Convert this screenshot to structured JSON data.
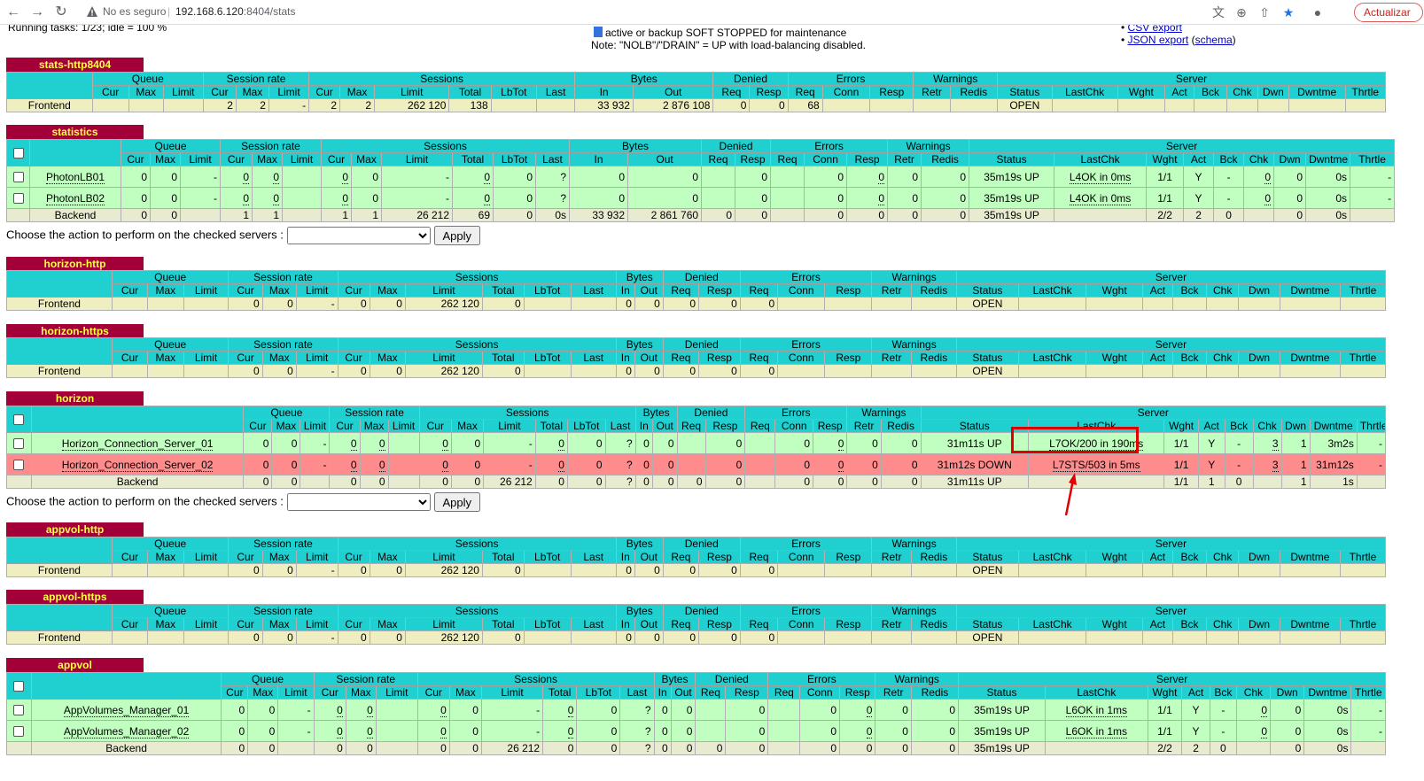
{
  "browser": {
    "insecure_label": "No es seguro",
    "url_host": "192.168.6.120",
    "url_rest": ":8404/stats",
    "update_button": "Actualizar"
  },
  "page": {
    "running_tasks": "Running tasks: 1/23; idle = 100 %",
    "legend_text": "active or backup SOFT STOPPED for maintenance",
    "note": "Note: \"NOLB\"/\"DRAIN\" = UP with load-balancing disabled.",
    "csv_export": "CSV export",
    "json_export": "JSON export",
    "schema": "schema",
    "action_label": "Choose the action to perform on the checked servers :",
    "apply": "Apply"
  },
  "headers": {
    "groups": [
      "Queue",
      "Session rate",
      "Sessions",
      "Bytes",
      "Denied",
      "Errors",
      "Warnings",
      "Server"
    ],
    "sub": [
      "Cur",
      "Max",
      "Limit",
      "Cur",
      "Max",
      "Limit",
      "Cur",
      "Max",
      "Limit",
      "Total",
      "LbTot",
      "Last",
      "In",
      "Out",
      "Req",
      "Resp",
      "Req",
      "Conn",
      "Resp",
      "Retr",
      "Redis",
      "Status",
      "LastChk",
      "Wght",
      "Act",
      "Bck",
      "Chk",
      "Dwn",
      "Dwntme",
      "Thrtle"
    ]
  },
  "proxies": {
    "stats": {
      "name": "stats-http8404",
      "frontend": {
        "name": "Frontend",
        "qcur": "",
        "qmax": "",
        "qlim": "",
        "rcur": "2",
        "rmax": "2",
        "rlim": "-",
        "scur": "2",
        "smax": "2",
        "slim": "262 120",
        "stot": "138",
        "lbtot": "",
        "last": "",
        "bin": "33 932",
        "bout": "2 876 108",
        "dreq": "0",
        "dresp": "0",
        "ereq": "68",
        "econ": "",
        "eresp": "",
        "wretr": "",
        "wredis": "",
        "status": "OPEN",
        "lastchk": "",
        "wght": "",
        "act": "",
        "bck": "",
        "chk": "",
        "dwn": "",
        "dwntme": "",
        "thr": ""
      }
    },
    "statistics": {
      "name": "statistics",
      "servers": [
        {
          "name": "PhotonLB01",
          "qcur": "0",
          "qmax": "0",
          "qlim": "-",
          "rcur": "0",
          "rmax": "0",
          "rlim": "",
          "scur": "0",
          "smax": "0",
          "slim": "-",
          "stot": "0",
          "lbtot": "0",
          "last": "?",
          "bin": "0",
          "bout": "0",
          "dreq": "",
          "dresp": "0",
          "ereq": "",
          "econ": "0",
          "eresp": "0",
          "wretr": "0",
          "wredis": "0",
          "status": "35m19s UP",
          "lastchk": "L4OK in 0ms",
          "wght": "1/1",
          "act": "Y",
          "bck": "-",
          "chk": "0",
          "dwn": "0",
          "dwntme": "0s",
          "thr": "-"
        },
        {
          "name": "PhotonLB02",
          "qcur": "0",
          "qmax": "0",
          "qlim": "-",
          "rcur": "0",
          "rmax": "0",
          "rlim": "",
          "scur": "0",
          "smax": "0",
          "slim": "-",
          "stot": "0",
          "lbtot": "0",
          "last": "?",
          "bin": "0",
          "bout": "0",
          "dreq": "",
          "dresp": "0",
          "ereq": "",
          "econ": "0",
          "eresp": "0",
          "wretr": "0",
          "wredis": "0",
          "status": "35m19s UP",
          "lastchk": "L4OK in 0ms",
          "wght": "1/1",
          "act": "Y",
          "bck": "-",
          "chk": "0",
          "dwn": "0",
          "dwntme": "0s",
          "thr": "-"
        }
      ],
      "backend": {
        "name": "Backend",
        "qcur": "0",
        "qmax": "0",
        "qlim": "",
        "rcur": "1",
        "rmax": "1",
        "rlim": "",
        "scur": "1",
        "smax": "1",
        "slim": "26 212",
        "stot": "69",
        "lbtot": "0",
        "last": "0s",
        "bin": "33 932",
        "bout": "2 861 760",
        "dreq": "0",
        "dresp": "0",
        "ereq": "",
        "econ": "0",
        "eresp": "0",
        "wretr": "0",
        "wredis": "0",
        "status": "35m19s UP",
        "lastchk": "",
        "wght": "2/2",
        "act": "2",
        "bck": "0",
        "chk": "",
        "dwn": "0",
        "dwntme": "0s",
        "thr": ""
      }
    },
    "horizon_http": {
      "name": "horizon-http",
      "frontend": {
        "name": "Frontend",
        "qcur": "",
        "qmax": "",
        "qlim": "",
        "rcur": "0",
        "rmax": "0",
        "rlim": "-",
        "scur": "0",
        "smax": "0",
        "slim": "262 120",
        "stot": "0",
        "lbtot": "",
        "last": "",
        "bin": "0",
        "bout": "0",
        "dreq": "0",
        "dresp": "0",
        "ereq": "0",
        "econ": "",
        "eresp": "",
        "wretr": "",
        "wredis": "",
        "status": "OPEN",
        "lastchk": "",
        "wght": "",
        "act": "",
        "bck": "",
        "chk": "",
        "dwn": "",
        "dwntme": "",
        "thr": ""
      }
    },
    "horizon_https": {
      "name": "horizon-https",
      "frontend": {
        "name": "Frontend",
        "qcur": "",
        "qmax": "",
        "qlim": "",
        "rcur": "0",
        "rmax": "0",
        "rlim": "-",
        "scur": "0",
        "smax": "0",
        "slim": "262 120",
        "stot": "0",
        "lbtot": "",
        "last": "",
        "bin": "0",
        "bout": "0",
        "dreq": "0",
        "dresp": "0",
        "ereq": "0",
        "econ": "",
        "eresp": "",
        "wretr": "",
        "wredis": "",
        "status": "OPEN",
        "lastchk": "",
        "wght": "",
        "act": "",
        "bck": "",
        "chk": "",
        "dwn": "",
        "dwntme": "",
        "thr": ""
      }
    },
    "horizon": {
      "name": "horizon",
      "servers": [
        {
          "name": "Horizon_Connection_Server_01",
          "state": "up",
          "qcur": "0",
          "qmax": "0",
          "qlim": "-",
          "rcur": "0",
          "rmax": "0",
          "rlim": "",
          "scur": "0",
          "smax": "0",
          "slim": "-",
          "stot": "0",
          "lbtot": "0",
          "last": "?",
          "bin": "0",
          "bout": "0",
          "dreq": "",
          "dresp": "0",
          "ereq": "",
          "econ": "0",
          "eresp": "0",
          "wretr": "0",
          "wredis": "0",
          "status": "31m11s UP",
          "lastchk": "L7OK/200 in 190ms",
          "wght": "1/1",
          "act": "Y",
          "bck": "-",
          "chk": "3",
          "dwn": "1",
          "dwntme": "3m2s",
          "thr": "-"
        },
        {
          "name": "Horizon_Connection_Server_02",
          "state": "down",
          "qcur": "0",
          "qmax": "0",
          "qlim": "-",
          "rcur": "0",
          "rmax": "0",
          "rlim": "",
          "scur": "0",
          "smax": "0",
          "slim": "-",
          "stot": "0",
          "lbtot": "0",
          "last": "?",
          "bin": "0",
          "bout": "0",
          "dreq": "",
          "dresp": "0",
          "ereq": "",
          "econ": "0",
          "eresp": "0",
          "wretr": "0",
          "wredis": "0",
          "status": "31m12s DOWN",
          "lastchk": "L7STS/503 in 5ms",
          "wght": "1/1",
          "act": "Y",
          "bck": "-",
          "chk": "3",
          "dwn": "1",
          "dwntme": "31m12s",
          "thr": "-"
        }
      ],
      "backend": {
        "name": "Backend",
        "qcur": "0",
        "qmax": "0",
        "qlim": "",
        "rcur": "0",
        "rmax": "0",
        "rlim": "",
        "scur": "0",
        "smax": "0",
        "slim": "26 212",
        "stot": "0",
        "lbtot": "0",
        "last": "?",
        "bin": "0",
        "bout": "0",
        "dreq": "0",
        "dresp": "0",
        "ereq": "",
        "econ": "0",
        "eresp": "0",
        "wretr": "0",
        "wredis": "0",
        "status": "31m11s UP",
        "lastchk": "",
        "wght": "1/1",
        "act": "1",
        "bck": "0",
        "chk": "",
        "dwn": "1",
        "dwntme": "1s",
        "thr": ""
      }
    },
    "appvol_http": {
      "name": "appvol-http",
      "frontend": {
        "name": "Frontend",
        "qcur": "",
        "qmax": "",
        "qlim": "",
        "rcur": "0",
        "rmax": "0",
        "rlim": "-",
        "scur": "0",
        "smax": "0",
        "slim": "262 120",
        "stot": "0",
        "lbtot": "",
        "last": "",
        "bin": "0",
        "bout": "0",
        "dreq": "0",
        "dresp": "0",
        "ereq": "0",
        "econ": "",
        "eresp": "",
        "wretr": "",
        "wredis": "",
        "status": "OPEN",
        "lastchk": "",
        "wght": "",
        "act": "",
        "bck": "",
        "chk": "",
        "dwn": "",
        "dwntme": "",
        "thr": ""
      }
    },
    "appvol_https": {
      "name": "appvol-https",
      "frontend": {
        "name": "Frontend",
        "qcur": "",
        "qmax": "",
        "qlim": "",
        "rcur": "0",
        "rmax": "0",
        "rlim": "-",
        "scur": "0",
        "smax": "0",
        "slim": "262 120",
        "stot": "0",
        "lbtot": "",
        "last": "",
        "bin": "0",
        "bout": "0",
        "dreq": "0",
        "dresp": "0",
        "ereq": "0",
        "econ": "",
        "eresp": "",
        "wretr": "",
        "wredis": "",
        "status": "OPEN",
        "lastchk": "",
        "wght": "",
        "act": "",
        "bck": "",
        "chk": "",
        "dwn": "",
        "dwntme": "",
        "thr": ""
      }
    },
    "appvol": {
      "name": "appvol",
      "servers": [
        {
          "name": "AppVolumes_Manager_01",
          "qcur": "0",
          "qmax": "0",
          "qlim": "-",
          "rcur": "0",
          "rmax": "0",
          "rlim": "",
          "scur": "0",
          "smax": "0",
          "slim": "-",
          "stot": "0",
          "lbtot": "0",
          "last": "?",
          "bin": "0",
          "bout": "0",
          "dreq": "",
          "dresp": "0",
          "ereq": "",
          "econ": "0",
          "eresp": "0",
          "wretr": "0",
          "wredis": "0",
          "status": "35m19s UP",
          "lastchk": "L6OK in 1ms",
          "wght": "1/1",
          "act": "Y",
          "bck": "-",
          "chk": "0",
          "dwn": "0",
          "dwntme": "0s",
          "thr": "-"
        },
        {
          "name": "AppVolumes_Manager_02",
          "qcur": "0",
          "qmax": "0",
          "qlim": "-",
          "rcur": "0",
          "rmax": "0",
          "rlim": "",
          "scur": "0",
          "smax": "0",
          "slim": "-",
          "stot": "0",
          "lbtot": "0",
          "last": "?",
          "bin": "0",
          "bout": "0",
          "dreq": "",
          "dresp": "0",
          "ereq": "",
          "econ": "0",
          "eresp": "0",
          "wretr": "0",
          "wredis": "0",
          "status": "35m19s UP",
          "lastchk": "L6OK in 1ms",
          "wght": "1/1",
          "act": "Y",
          "bck": "-",
          "chk": "0",
          "dwn": "0",
          "dwntme": "0s",
          "thr": "-"
        }
      ],
      "backend": {
        "name": "Backend",
        "qcur": "0",
        "qmax": "0",
        "qlim": "",
        "rcur": "0",
        "rmax": "0",
        "rlim": "",
        "scur": "0",
        "smax": "0",
        "slim": "26 212",
        "stot": "0",
        "lbtot": "0",
        "last": "?",
        "bin": "0",
        "bout": "0",
        "dreq": "0",
        "dresp": "0",
        "ereq": "",
        "econ": "0",
        "eresp": "0",
        "wretr": "0",
        "wredis": "0",
        "status": "35m19s UP",
        "lastchk": "",
        "wght": "2/2",
        "act": "2",
        "bck": "0",
        "chk": "",
        "dwn": "0",
        "dwntme": "0s",
        "thr": ""
      }
    }
  },
  "colors": {
    "title_bg": "#a3003a",
    "title_fg": "#ffff40",
    "header": "#20d0d0",
    "up": "#c0ffc0",
    "down": "#ff8c8c",
    "frontend": "#eeeec0",
    "highlight": "#e00000"
  }
}
